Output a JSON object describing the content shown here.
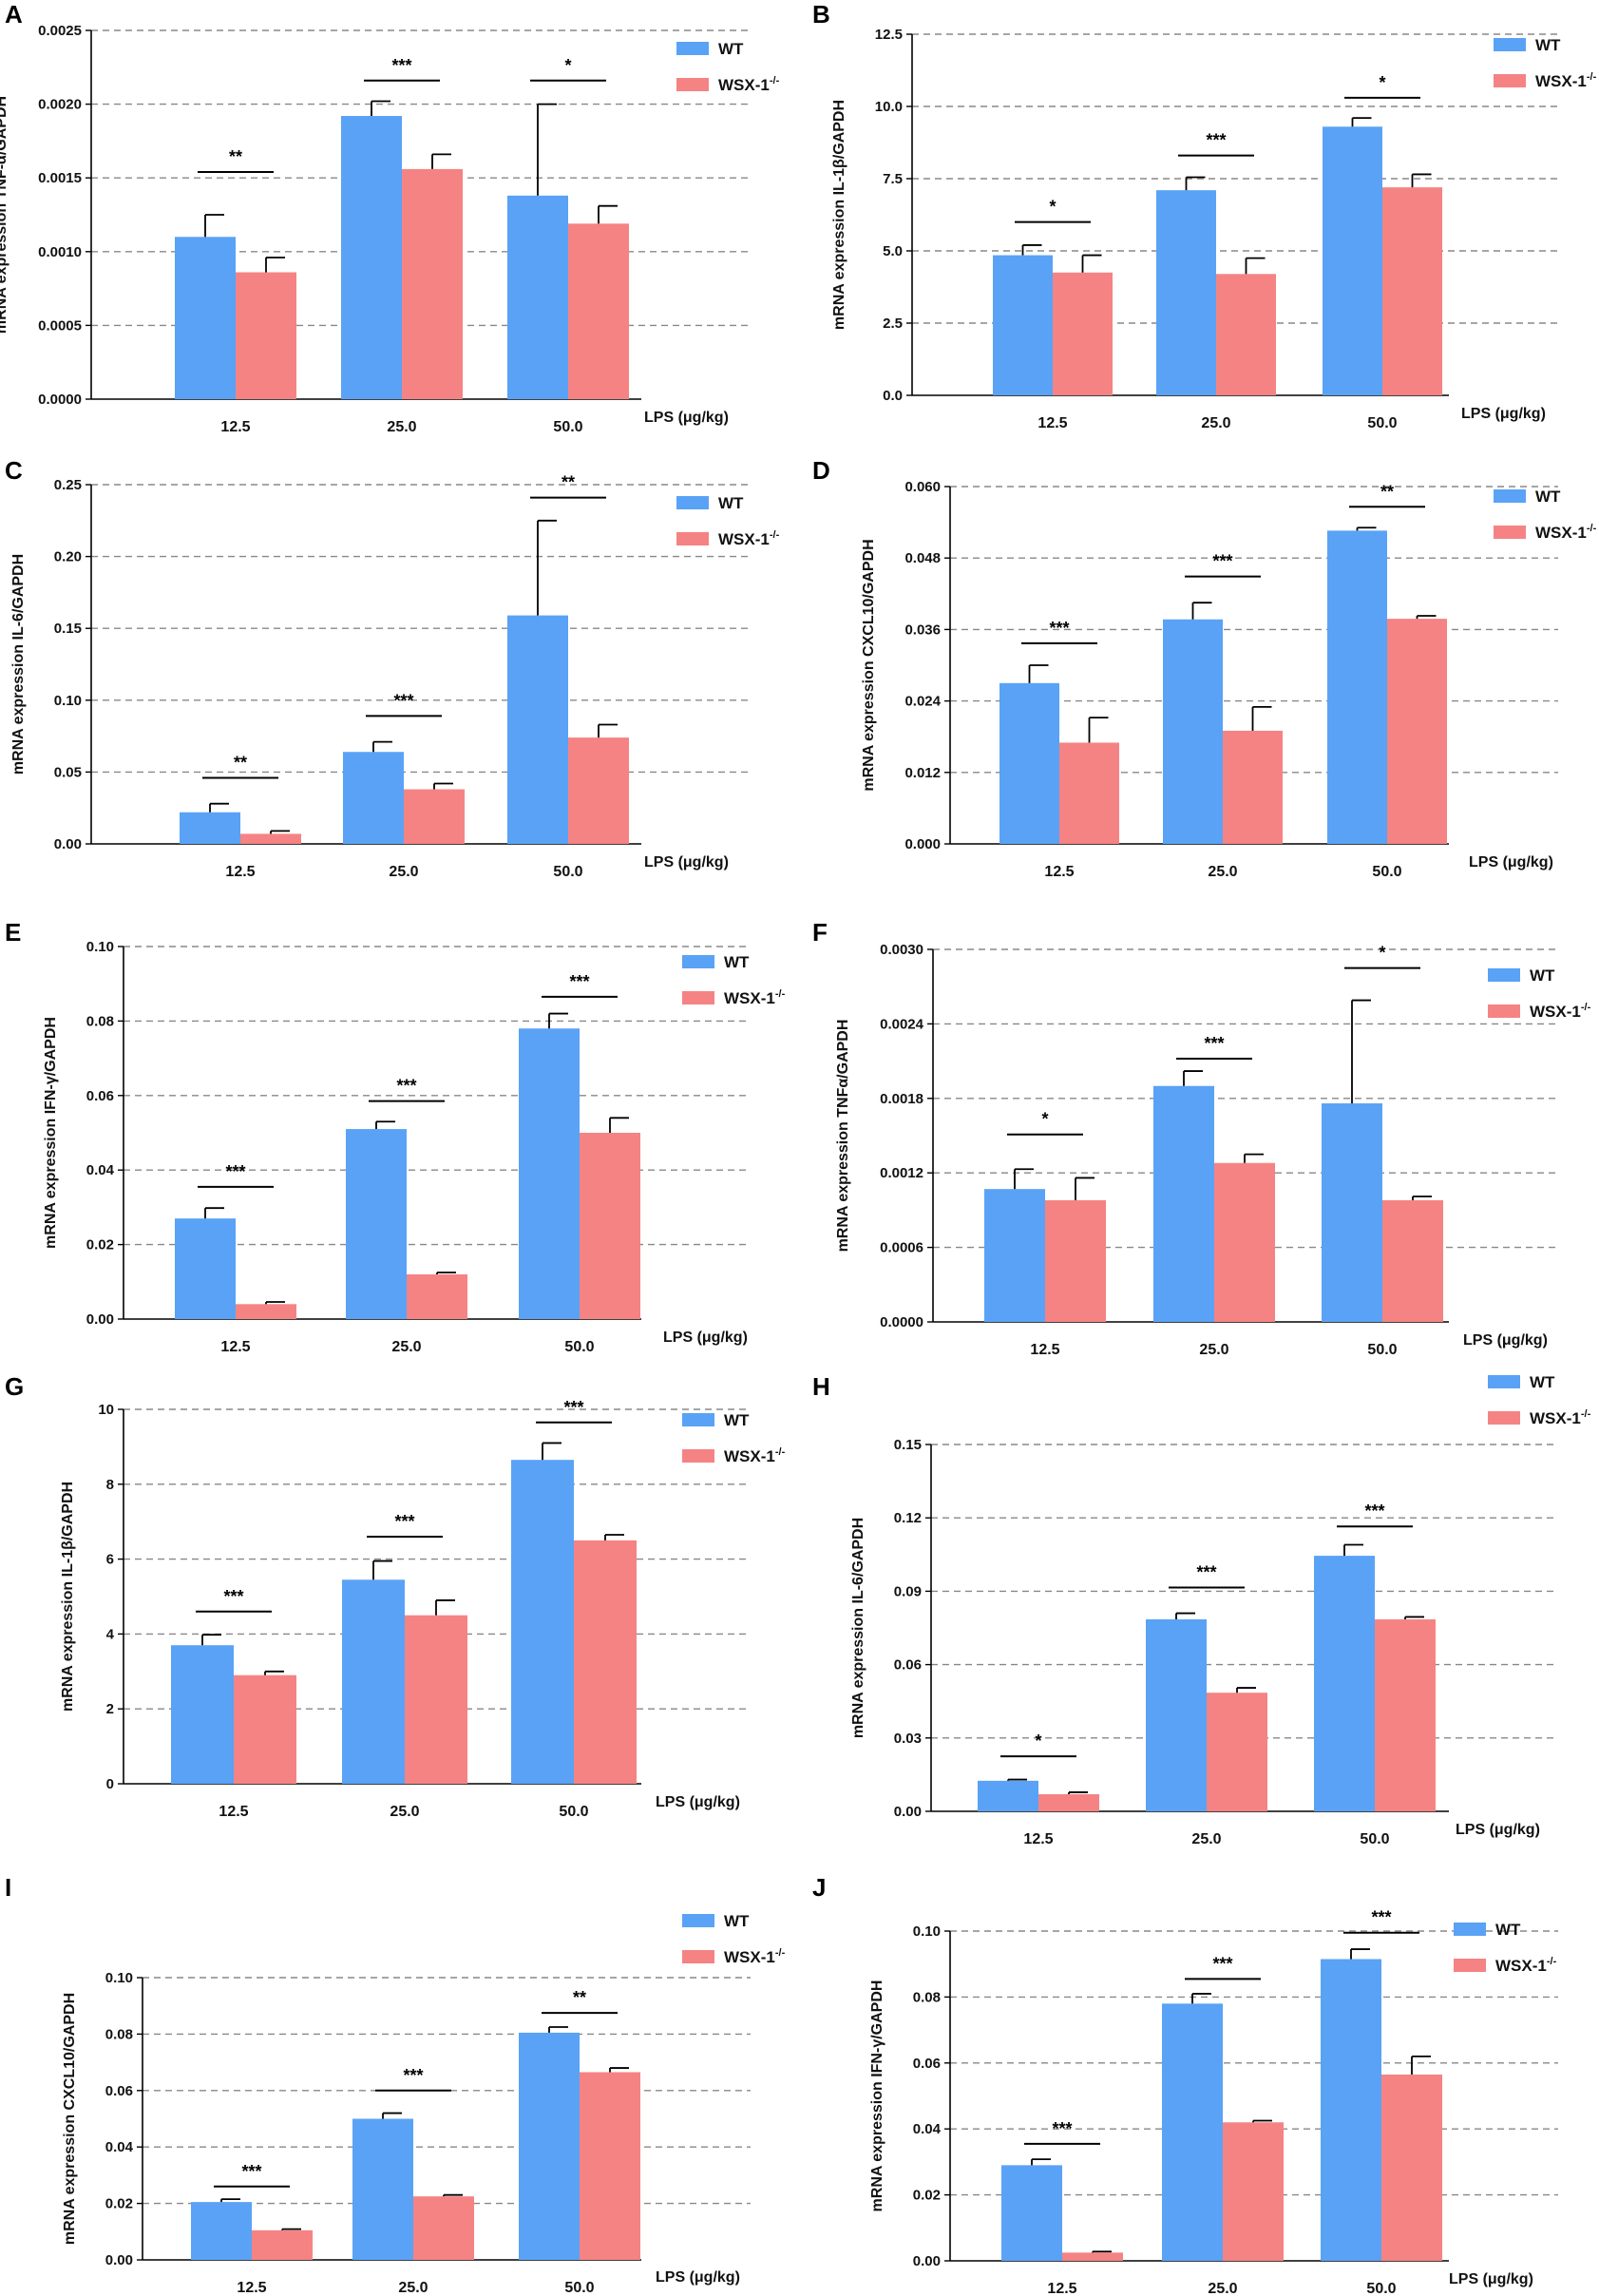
{
  "colors": {
    "wt": "#5aa2f5",
    "ko": "#f58383",
    "axis": "#000000",
    "grid": "#888888"
  },
  "legend": {
    "wt": "WT",
    "ko_base": "WSX-1",
    "ko_sup": "-/-"
  },
  "chart_data": [
    {
      "letter": "A",
      "type": "bar",
      "ylabel": "mRNA expression TNF-α/GAPDH",
      "xlabel": "LPS (μg/kg)",
      "categories": [
        "12.5",
        "25.0",
        "50.0"
      ],
      "ylim": [
        0,
        0.0025
      ],
      "ticks": [
        "0.0000",
        "0.0005",
        "0.0010",
        "0.0015",
        "0.0020",
        "0.0025"
      ],
      "tick_values": [
        0,
        0.0005,
        0.001,
        0.0015,
        0.002,
        0.0025
      ],
      "series": [
        {
          "name": "WT",
          "values": [
            0.0011,
            0.00192,
            0.00138
          ],
          "errors": [
            0.00015,
            0.0001,
            0.00062
          ]
        },
        {
          "name": "WSX-1-/-",
          "values": [
            0.00086,
            0.00156,
            0.00119
          ],
          "errors": [
            0.0001,
            0.0001,
            0.00012
          ]
        }
      ],
      "significance": [
        "**",
        "***",
        "*"
      ],
      "sig_y": [
        0.00154,
        0.00216,
        0.00216
      ]
    },
    {
      "letter": "B",
      "type": "bar",
      "ylabel": "mRNA expression IL-1β/GAPDH",
      "xlabel": "LPS (μg/kg)",
      "categories": [
        "12.5",
        "25.0",
        "50.0"
      ],
      "ylim": [
        0,
        12.5
      ],
      "ticks": [
        "0.0",
        "2.5",
        "5.0",
        "7.5",
        "10.0",
        "12.5"
      ],
      "tick_values": [
        0,
        2.5,
        5,
        7.5,
        10,
        12.5
      ],
      "series": [
        {
          "name": "WT",
          "values": [
            4.85,
            7.1,
            9.3
          ],
          "errors": [
            0.35,
            0.45,
            0.3
          ]
        },
        {
          "name": "WSX-1-/-",
          "values": [
            4.25,
            4.2,
            7.2
          ],
          "errors": [
            0.6,
            0.55,
            0.45
          ]
        }
      ],
      "significance": [
        "*",
        "***",
        "*"
      ],
      "sig_y": [
        6.0,
        8.3,
        10.3
      ]
    },
    {
      "letter": "C",
      "type": "bar",
      "ylabel": "mRNA expression IL-6/GAPDH",
      "xlabel": "LPS (μg/kg)",
      "categories": [
        "12.5",
        "25.0",
        "50.0"
      ],
      "ylim": [
        0,
        0.25
      ],
      "ticks": [
        "0.00",
        "0.05",
        "0.10",
        "0.15",
        "0.20",
        "0.25"
      ],
      "tick_values": [
        0,
        0.05,
        0.1,
        0.15,
        0.2,
        0.25
      ],
      "series": [
        {
          "name": "WT",
          "values": [
            0.022,
            0.064,
            0.159
          ],
          "errors": [
            0.006,
            0.007,
            0.066
          ]
        },
        {
          "name": "WSX-1-/-",
          "values": [
            0.007,
            0.038,
            0.074
          ],
          "errors": [
            0.002,
            0.004,
            0.009
          ]
        }
      ],
      "significance": [
        "**",
        "***",
        "**"
      ],
      "sig_y": [
        0.046,
        0.089,
        0.241
      ]
    },
    {
      "letter": "D",
      "type": "bar",
      "ylabel": "mRNA expression CXCL10/GAPDH",
      "xlabel": "LPS (μg/kg)",
      "categories": [
        "12.5",
        "25.0",
        "50.0"
      ],
      "ylim": [
        0,
        0.06
      ],
      "ticks": [
        "0.000",
        "0.012",
        "0.024",
        "0.036",
        "0.048",
        "0.060"
      ],
      "tick_values": [
        0,
        0.012,
        0.024,
        0.036,
        0.048,
        0.06
      ],
      "series": [
        {
          "name": "WT",
          "values": [
            0.027,
            0.0377,
            0.0526
          ],
          "errors": [
            0.003,
            0.0028,
            0.0005
          ]
        },
        {
          "name": "WSX-1-/-",
          "values": [
            0.017,
            0.019,
            0.0378
          ],
          "errors": [
            0.0042,
            0.004,
            0.0005
          ]
        }
      ],
      "significance": [
        "***",
        "***",
        "**"
      ],
      "sig_y": [
        0.0337,
        0.0449,
        0.0566
      ]
    },
    {
      "letter": "E",
      "type": "bar",
      "ylabel": "mRNA expression IFN-γ/GAPDH",
      "xlabel": "LPS (μg/kg)",
      "categories": [
        "12.5",
        "25.0",
        "50.0"
      ],
      "ylim": [
        0,
        0.1
      ],
      "ticks": [
        "0.00",
        "0.02",
        "0.04",
        "0.06",
        "0.08",
        "0.10"
      ],
      "tick_values": [
        0,
        0.02,
        0.04,
        0.06,
        0.08,
        0.1
      ],
      "series": [
        {
          "name": "WT",
          "values": [
            0.027,
            0.051,
            0.078
          ],
          "errors": [
            0.0028,
            0.002,
            0.004
          ]
        },
        {
          "name": "WSX-1-/-",
          "values": [
            0.004,
            0.012,
            0.05
          ],
          "errors": [
            0.0006,
            0.0005,
            0.004
          ]
        }
      ],
      "significance": [
        "***",
        "***",
        "***"
      ],
      "sig_y": [
        0.0355,
        0.0585,
        0.0865
      ]
    },
    {
      "letter": "F",
      "type": "bar",
      "ylabel": "mRNA expression TNFα/GAPDH",
      "xlabel": "LPS (μg/kg)",
      "categories": [
        "12.5",
        "25.0",
        "50.0"
      ],
      "ylim": [
        0,
        0.003
      ],
      "ticks": [
        "0.0000",
        "0.0006",
        "0.0012",
        "0.0018",
        "0.0024",
        "0.0030"
      ],
      "tick_values": [
        0,
        0.0006,
        0.0012,
        0.0018,
        0.0024,
        0.003
      ],
      "series": [
        {
          "name": "WT",
          "values": [
            0.00107,
            0.0019,
            0.00176
          ],
          "errors": [
            0.00016,
            0.00012,
            0.00083
          ]
        },
        {
          "name": "WSX-1-/-",
          "values": [
            0.00098,
            0.00128,
            0.00098
          ],
          "errors": [
            0.00018,
            7e-05,
            3e-05
          ]
        }
      ],
      "significance": [
        "*",
        "***",
        "*"
      ],
      "sig_y": [
        0.00151,
        0.00212,
        0.00285
      ]
    },
    {
      "letter": "G",
      "type": "bar",
      "ylabel": "mRNA expression IL-1β/GAPDH",
      "xlabel": "LPS (μg/kg)",
      "categories": [
        "12.5",
        "25.0",
        "50.0"
      ],
      "ylim": [
        0,
        10
      ],
      "ticks": [
        "0",
        "2",
        "4",
        "6",
        "8",
        "10"
      ],
      "tick_values": [
        0,
        2,
        4,
        6,
        8,
        10
      ],
      "series": [
        {
          "name": "WT",
          "values": [
            3.7,
            5.45,
            8.65
          ],
          "errors": [
            0.28,
            0.5,
            0.45
          ]
        },
        {
          "name": "WSX-1-/-",
          "values": [
            2.9,
            4.5,
            6.5
          ],
          "errors": [
            0.1,
            0.4,
            0.15
          ]
        }
      ],
      "significance": [
        "***",
        "***",
        "***"
      ],
      "sig_y": [
        4.6,
        6.6,
        9.65
      ]
    },
    {
      "letter": "H",
      "type": "bar",
      "ylabel": "mRNA expression IL-6/GAPDH",
      "xlabel": "LPS (μg/kg)",
      "categories": [
        "12.5",
        "25.0",
        "50.0"
      ],
      "ylim": [
        0,
        0.15
      ],
      "ticks": [
        "0.00",
        "0.03",
        "0.06",
        "0.09",
        "0.12",
        "0.15"
      ],
      "tick_values": [
        0,
        0.03,
        0.06,
        0.09,
        0.12,
        0.15
      ],
      "series": [
        {
          "name": "WT",
          "values": [
            0.0125,
            0.0785,
            0.1045
          ],
          "errors": [
            0.0005,
            0.0025,
            0.0045
          ]
        },
        {
          "name": "WSX-1-/-",
          "values": [
            0.007,
            0.0485,
            0.0785
          ],
          "errors": [
            0.0008,
            0.002,
            0.001
          ]
        }
      ],
      "significance": [
        "*",
        "***",
        "***"
      ],
      "sig_y": [
        0.0225,
        0.0915,
        0.1165
      ]
    },
    {
      "letter": "I",
      "type": "bar",
      "ylabel": "mRNA expression CXCL10/GAPDH",
      "xlabel": "LPS (μg/kg)",
      "categories": [
        "12.5",
        "25.0",
        "50.0"
      ],
      "ylim": [
        0,
        0.1
      ],
      "ticks": [
        "0.00",
        "0.02",
        "0.04",
        "0.06",
        "0.08",
        "0.10"
      ],
      "tick_values": [
        0,
        0.02,
        0.04,
        0.06,
        0.08,
        0.1
      ],
      "series": [
        {
          "name": "WT",
          "values": [
            0.0205,
            0.05,
            0.0805
          ],
          "errors": [
            0.001,
            0.002,
            0.002
          ]
        },
        {
          "name": "WSX-1-/-",
          "values": [
            0.0105,
            0.0225,
            0.0665
          ],
          "errors": [
            0.0004,
            0.0005,
            0.0015
          ]
        }
      ],
      "significance": [
        "***",
        "***",
        "**"
      ],
      "sig_y": [
        0.026,
        0.06,
        0.0875
      ]
    },
    {
      "letter": "J",
      "type": "bar",
      "ylabel": "mRNA expression IFN-γ/GAPDH",
      "xlabel": "LPS (μg/kg)",
      "categories": [
        "12.5",
        "25.0",
        "50.0"
      ],
      "ylim": [
        0,
        0.1
      ],
      "ticks": [
        "0.00",
        "0.02",
        "0.04",
        "0.06",
        "0.08",
        "0.10"
      ],
      "tick_values": [
        0,
        0.02,
        0.04,
        0.06,
        0.08,
        0.1
      ],
      "series": [
        {
          "name": "WT",
          "values": [
            0.029,
            0.078,
            0.0915
          ],
          "errors": [
            0.0018,
            0.003,
            0.003
          ]
        },
        {
          "name": "WSX-1-/-",
          "values": [
            0.0025,
            0.042,
            0.0565
          ],
          "errors": [
            0.0003,
            0.0005,
            0.0055
          ]
        }
      ],
      "significance": [
        "***",
        "***",
        "***"
      ],
      "sig_y": [
        0.0355,
        0.0855,
        0.0995
      ]
    }
  ]
}
